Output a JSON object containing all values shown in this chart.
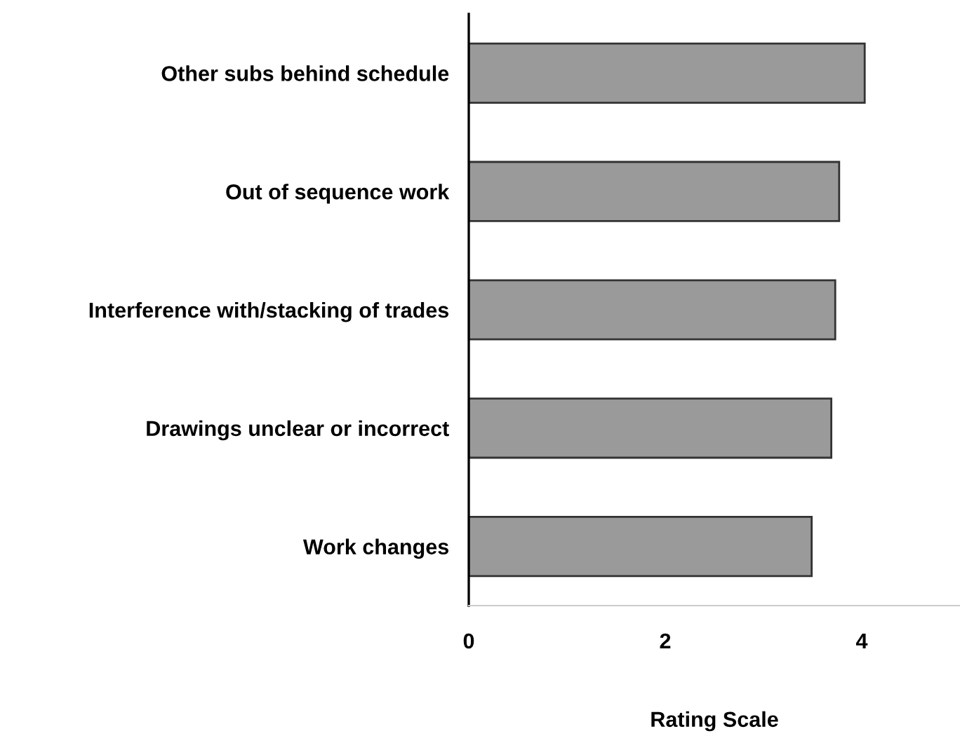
{
  "chart_data": {
    "type": "bar",
    "orientation": "horizontal",
    "xlabel": "Rating Scale",
    "categories": [
      "Other subs behind schedule",
      "Out of sequence work",
      "Interference with/stacking of trades",
      "Drawings unclear or incorrect",
      "Work changes"
    ],
    "values": [
      4.03,
      3.77,
      3.73,
      3.69,
      3.49
    ],
    "color": "#9a9a9a",
    "xlim": [
      0,
      5
    ],
    "xticks": [
      0,
      2,
      4
    ],
    "grid": false,
    "legend": false
  }
}
